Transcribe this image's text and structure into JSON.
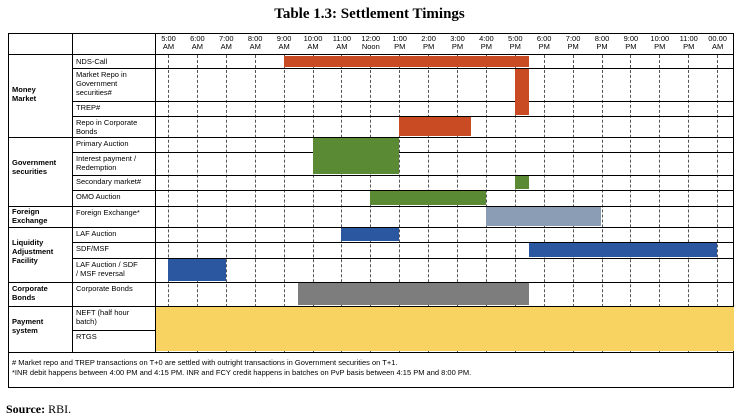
{
  "title": "Table 1.3: Settlement Timings",
  "time_ticks": [
    [
      "5:00",
      "AM"
    ],
    [
      "6:00",
      "AM"
    ],
    [
      "7:00",
      "AM"
    ],
    [
      "8:00",
      "AM"
    ],
    [
      "9:00",
      "AM"
    ],
    [
      "10:00",
      "AM"
    ],
    [
      "11:00",
      "AM"
    ],
    [
      "12:00",
      "Noon"
    ],
    [
      "1:00",
      "PM"
    ],
    [
      "2:00",
      "PM"
    ],
    [
      "3:00",
      "PM"
    ],
    [
      "4:00",
      "PM"
    ],
    [
      "5:00",
      "PM"
    ],
    [
      "6:00",
      "PM"
    ],
    [
      "7:00",
      "PM"
    ],
    [
      "8:00",
      "PM"
    ],
    [
      "9:00",
      "PM"
    ],
    [
      "10:00",
      "PM"
    ],
    [
      "11:00",
      "PM"
    ],
    [
      "00.00",
      "AM"
    ]
  ],
  "categories": [
    {
      "label": "Money\nMarket"
    },
    {
      "label": "Government\nsecurities"
    },
    {
      "label": "Foreign\nExchange"
    },
    {
      "label": "Liquidity\nAdjustment\nFacility"
    },
    {
      "label": "Corporate\nBonds"
    },
    {
      "label": "Payment\nsystem"
    }
  ],
  "rows": [
    {
      "label": "NDS-Call"
    },
    {
      "label": "Market Repo in\nGovernment\nsecurities#"
    },
    {
      "label": "TREP#"
    },
    {
      "label": "Repo in Corporate\nBonds"
    },
    {
      "label": "Primary Auction"
    },
    {
      "label": "Interest payment /\nRedemption"
    },
    {
      "label": "Secondary market#"
    },
    {
      "label": "OMO Auction"
    },
    {
      "label": "Foreign Exchange*"
    },
    {
      "label": "LAF Auction"
    },
    {
      "label": "SDF/MSF"
    },
    {
      "label": "LAF Auction / SDF\n/ MSF reversal"
    },
    {
      "label": "Corporate Bonds"
    },
    {
      "label": "NEFT (half hour\nbatch)"
    },
    {
      "label": "RTGS"
    }
  ],
  "colors": {
    "money_market": "#c84b24",
    "government_securities": "#5a8a34",
    "foreign_exchange": "#8b9db4",
    "liquidity": "#2a57a0",
    "corporate_bonds": "#7d7d7d",
    "payment_system": "#f8d362"
  },
  "bars": [
    {
      "name": "NDS-Call / Market Repo",
      "start": "9:00 AM",
      "end": "5:00 PM",
      "color": "money_market"
    },
    {
      "name": "Market Repo / TREP extension",
      "start": "4:30 PM",
      "end": "5:30 PM",
      "color": "money_market"
    },
    {
      "name": "Repo in Corporate Bonds",
      "start": "1:00 PM",
      "end": "3:30 PM",
      "color": "money_market"
    },
    {
      "name": "Primary Auction / Interest payment",
      "start": "10:00 AM",
      "end": "1:00 PM",
      "color": "government_securities"
    },
    {
      "name": "Secondary market",
      "start": "5:00 PM",
      "end": "5:30 PM",
      "color": "government_securities"
    },
    {
      "name": "OMO Auction",
      "start": "12:00 Noon",
      "end": "4:00 PM",
      "color": "government_securities"
    },
    {
      "name": "Foreign Exchange",
      "start": "4:00 PM",
      "end": "8:00 PM",
      "color": "foreign_exchange"
    },
    {
      "name": "LAF Auction",
      "start": "11:00 AM",
      "end": "1:00 PM",
      "color": "liquidity"
    },
    {
      "name": "SDF/MSF",
      "start": "5:30 PM",
      "end": "00.00 AM",
      "color": "liquidity"
    },
    {
      "name": "LAF Auction / SDF / MSF reversal",
      "start": "5:00 AM",
      "end": "7:00 AM",
      "color": "liquidity"
    },
    {
      "name": "Corporate Bonds",
      "start": "9:30 AM",
      "end": "5:30 PM",
      "color": "corporate_bonds"
    },
    {
      "name": "Payment system",
      "start": "5:00 AM",
      "end": "00.00 AM",
      "color": "payment_system"
    }
  ],
  "notes": [
    "# Market repo and TREP transactions on T+0 are settled with outright transactions in Government securities on T+1.",
    "*INR debit happens between 4:00 PM and 4:15 PM. INR and FCY credit happens in batches on PvP basis between 4:15 PM and 8:00 PM."
  ],
  "source_label": "Source:",
  "source_value": "RBI."
}
